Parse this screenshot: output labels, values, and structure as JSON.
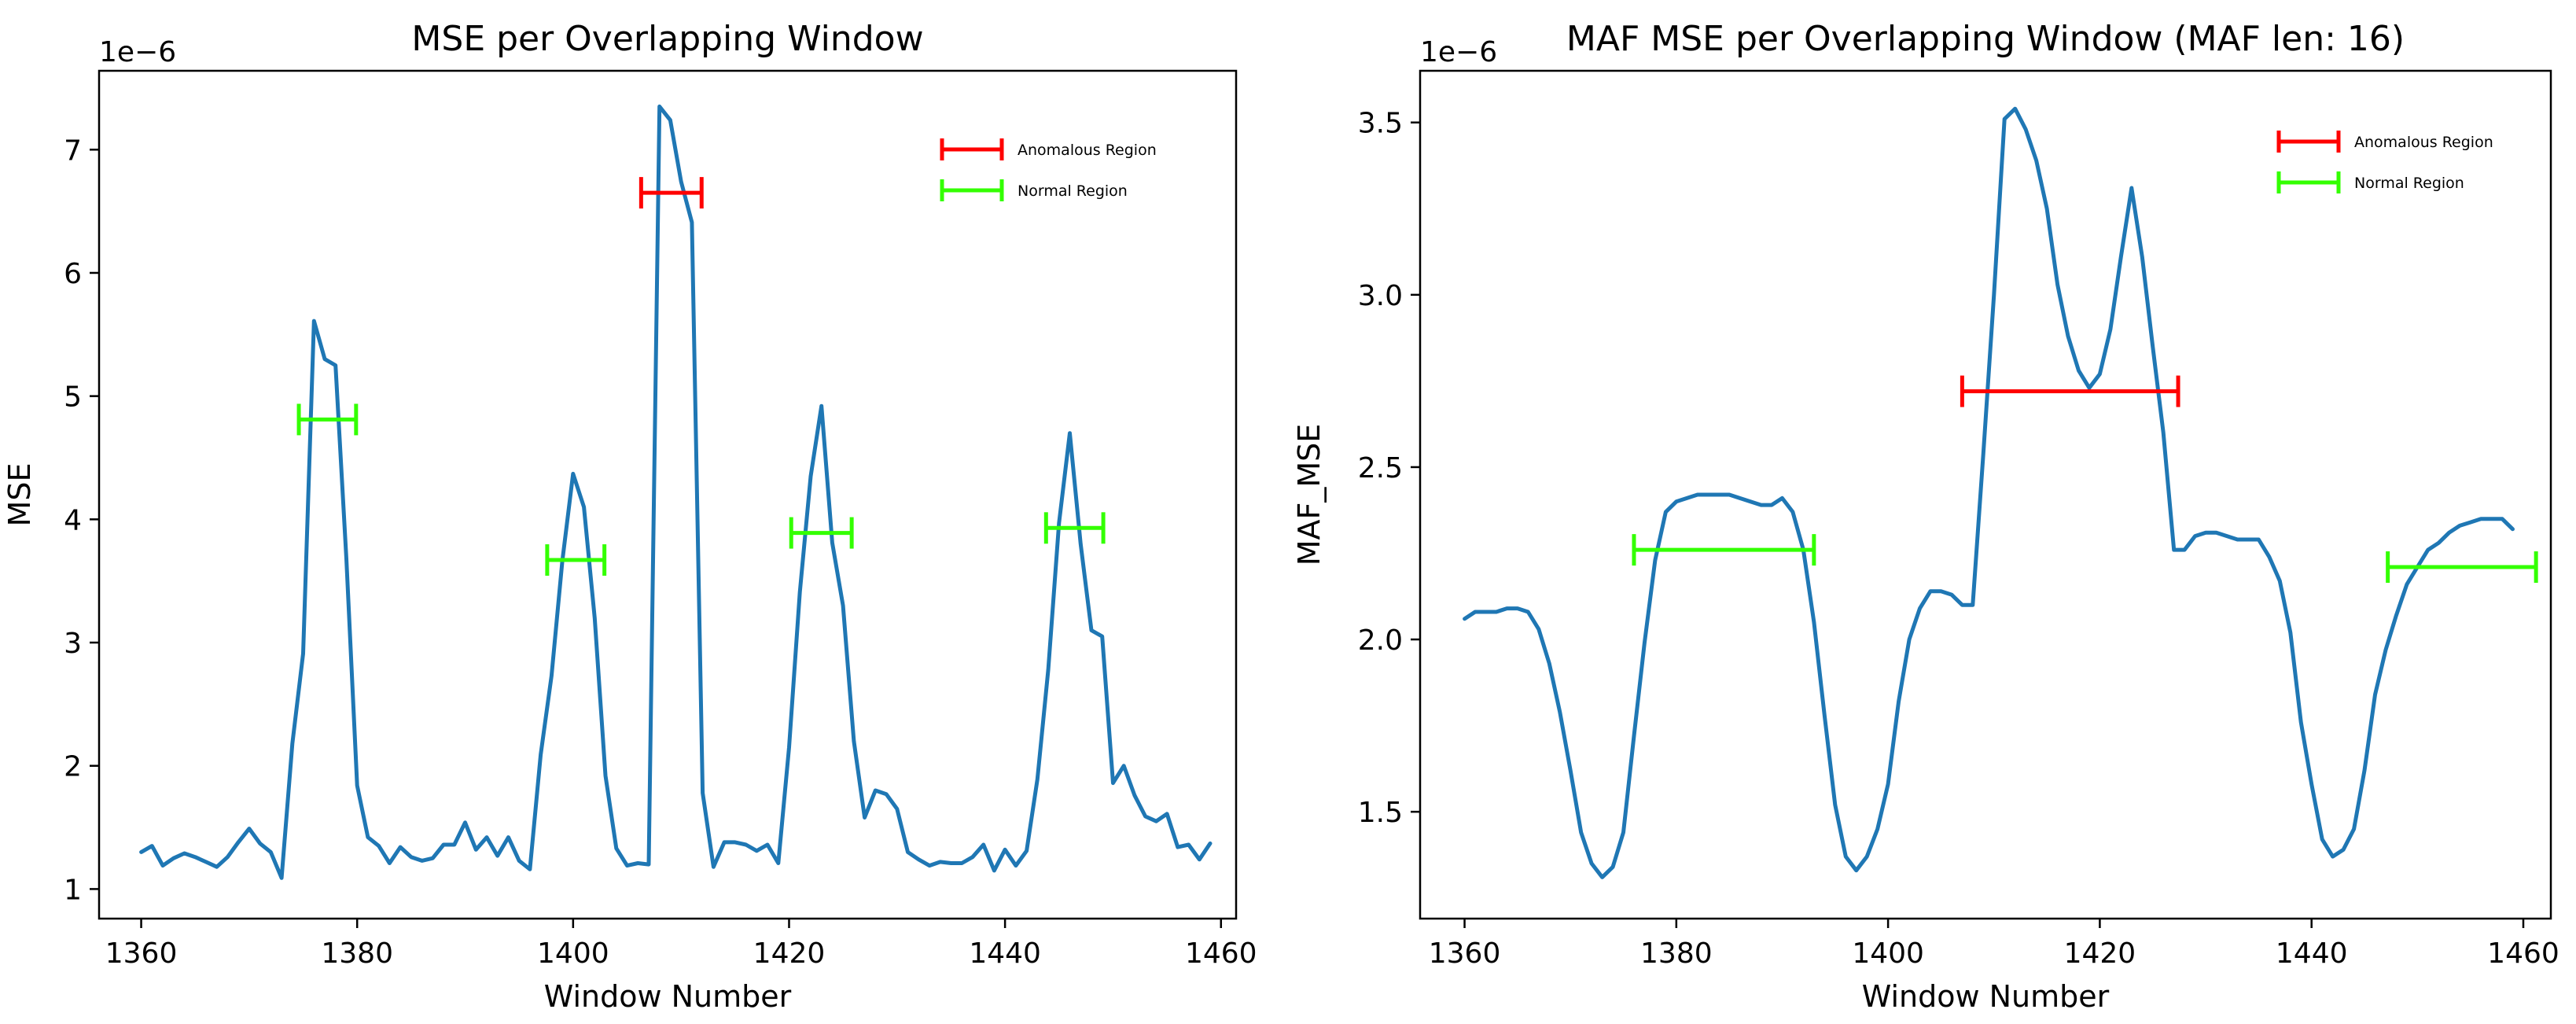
{
  "charts": [
    {
      "type": "line",
      "title": "MSE per Overlapping Window",
      "xlabel": "Window Number",
      "ylabel": "MSE",
      "offset_label": "1e−6",
      "xlim": [
        1356.1,
        1461.4
      ],
      "ylim": [
        0.76,
        7.64
      ],
      "x_ticks": [
        1360,
        1380,
        1400,
        1420,
        1440,
        1460
      ],
      "y_ticks": [
        1,
        2,
        3,
        4,
        5,
        6,
        7
      ],
      "line_color": "#1f77b4",
      "series": {
        "x": [
          1360,
          1361,
          1362,
          1363,
          1364,
          1365,
          1366,
          1367,
          1368,
          1369,
          1370,
          1371,
          1372,
          1373,
          1374,
          1375,
          1376,
          1377,
          1378,
          1379,
          1380,
          1381,
          1382,
          1383,
          1384,
          1385,
          1386,
          1387,
          1388,
          1389,
          1390,
          1391,
          1392,
          1393,
          1394,
          1395,
          1396,
          1397,
          1398,
          1399,
          1400,
          1401,
          1402,
          1403,
          1404,
          1405,
          1406,
          1407,
          1408,
          1409,
          1410,
          1411,
          1412,
          1413,
          1414,
          1415,
          1416,
          1417,
          1418,
          1419,
          1420,
          1421,
          1422,
          1423,
          1424,
          1425,
          1426,
          1427,
          1428,
          1429,
          1430,
          1431,
          1432,
          1433,
          1434,
          1435,
          1436,
          1437,
          1438,
          1439,
          1440,
          1441,
          1442,
          1443,
          1444,
          1445,
          1446,
          1447,
          1448,
          1449,
          1450,
          1451,
          1452,
          1453,
          1454,
          1455,
          1456,
          1457,
          1458,
          1459
        ],
        "y": [
          1.3,
          1.35,
          1.19,
          1.25,
          1.29,
          1.26,
          1.22,
          1.18,
          1.26,
          1.38,
          1.49,
          1.37,
          1.3,
          1.09,
          2.18,
          2.91,
          5.61,
          5.3,
          5.25,
          3.68,
          1.84,
          1.42,
          1.35,
          1.21,
          1.34,
          1.26,
          1.23,
          1.25,
          1.36,
          1.36,
          1.54,
          1.32,
          1.42,
          1.27,
          1.42,
          1.23,
          1.16,
          2.09,
          2.73,
          3.66,
          4.37,
          4.1,
          3.2,
          1.92,
          1.33,
          1.19,
          1.21,
          1.2,
          7.35,
          7.24,
          6.74,
          6.41,
          1.78,
          1.18,
          1.38,
          1.38,
          1.36,
          1.31,
          1.36,
          1.21,
          2.15,
          3.41,
          4.35,
          4.92,
          3.81,
          3.3,
          2.2,
          1.58,
          1.8,
          1.77,
          1.65,
          1.3,
          1.24,
          1.19,
          1.22,
          1.21,
          1.21,
          1.26,
          1.36,
          1.15,
          1.32,
          1.19,
          1.31,
          1.89,
          2.78,
          3.97,
          4.7,
          3.8,
          3.1,
          3.05,
          1.86,
          2.0,
          1.76,
          1.59,
          1.55,
          1.61,
          1.34,
          1.36,
          1.24,
          1.37
        ]
      },
      "regions": [
        {
          "label": "Normal Region",
          "x_start": 1374.6,
          "x_end": 1379.9,
          "y": 4.81,
          "color": "#33ff00"
        },
        {
          "label": "Normal Region",
          "x_start": 1397.6,
          "x_end": 1402.9,
          "y": 3.67,
          "color": "#33ff00"
        },
        {
          "label": "Anomalous Region",
          "x_start": 1406.3,
          "x_end": 1411.9,
          "y": 6.65,
          "color": "#ff0000"
        },
        {
          "label": "Normal Region",
          "x_start": 1420.2,
          "x_end": 1425.8,
          "y": 3.89,
          "color": "#33ff00"
        },
        {
          "label": "Normal Region",
          "x_start": 1443.8,
          "x_end": 1449.1,
          "y": 3.93,
          "color": "#33ff00"
        }
      ],
      "legend": {
        "location": "upper right",
        "entries": [
          {
            "label": "Anomalous Region",
            "color": "#ff0000"
          },
          {
            "label": "Normal Region",
            "color": "#33ff00"
          }
        ]
      }
    },
    {
      "type": "line",
      "title": "MAF MSE per Overlapping Window (MAF len: 16)",
      "xlabel": "Window Number",
      "ylabel": "MAF_MSE",
      "offset_label": "1e−6",
      "xlim": [
        1355.8,
        1462.6
      ],
      "ylim": [
        1.19,
        3.65
      ],
      "x_ticks": [
        1360,
        1380,
        1400,
        1420,
        1440,
        1460
      ],
      "y_ticks": [
        1.5,
        2.0,
        2.5,
        3.0,
        3.5
      ],
      "y_tick_labels": [
        "1.5",
        "2.0",
        "2.5",
        "3.0",
        "3.5"
      ],
      "line_color": "#1f77b4",
      "series": {
        "x": [
          1360,
          1361,
          1362,
          1363,
          1364,
          1365,
          1366,
          1367,
          1368,
          1369,
          1370,
          1371,
          1372,
          1373,
          1374,
          1375,
          1376,
          1377,
          1378,
          1379,
          1380,
          1381,
          1382,
          1383,
          1384,
          1385,
          1386,
          1387,
          1388,
          1389,
          1390,
          1391,
          1392,
          1393,
          1394,
          1395,
          1396,
          1397,
          1398,
          1399,
          1400,
          1401,
          1402,
          1403,
          1404,
          1405,
          1406,
          1407,
          1408,
          1409,
          1410,
          1411,
          1412,
          1413,
          1414,
          1415,
          1416,
          1417,
          1418,
          1419,
          1420,
          1421,
          1422,
          1423,
          1424,
          1425,
          1426,
          1427,
          1428,
          1429,
          1430,
          1431,
          1432,
          1433,
          1434,
          1435,
          1436,
          1437,
          1438,
          1439,
          1440,
          1441,
          1442,
          1443,
          1444,
          1445,
          1446,
          1447,
          1448,
          1449,
          1450,
          1451,
          1452,
          1453,
          1454,
          1455,
          1456,
          1457,
          1458,
          1459
        ],
        "y": [
          2.06,
          2.08,
          2.08,
          2.08,
          2.09,
          2.09,
          2.08,
          2.03,
          1.93,
          1.79,
          1.62,
          1.44,
          1.35,
          1.31,
          1.34,
          1.44,
          1.72,
          1.99,
          2.23,
          2.37,
          2.4,
          2.41,
          2.42,
          2.42,
          2.42,
          2.42,
          2.41,
          2.4,
          2.39,
          2.39,
          2.41,
          2.37,
          2.26,
          2.05,
          1.78,
          1.52,
          1.37,
          1.33,
          1.37,
          1.45,
          1.58,
          1.82,
          2.0,
          2.09,
          2.14,
          2.14,
          2.13,
          2.1,
          2.1,
          2.54,
          3.0,
          3.51,
          3.54,
          3.48,
          3.39,
          3.25,
          3.03,
          2.88,
          2.78,
          2.73,
          2.77,
          2.9,
          3.11,
          3.31,
          3.11,
          2.85,
          2.6,
          2.26,
          2.26,
          2.3,
          2.31,
          2.31,
          2.3,
          2.29,
          2.29,
          2.29,
          2.24,
          2.17,
          2.02,
          1.76,
          1.58,
          1.42,
          1.37,
          1.39,
          1.45,
          1.62,
          1.84,
          1.97,
          2.07,
          2.16,
          2.21,
          2.26,
          2.28,
          2.31,
          2.33,
          2.34,
          2.35,
          2.35,
          2.35,
          2.32
        ]
      },
      "regions": [
        {
          "label": "Normal Region",
          "x_start": 1376.0,
          "x_end": 1393.0,
          "y": 2.26,
          "color": "#33ff00"
        },
        {
          "label": "Anomalous Region",
          "x_start": 1407.0,
          "x_end": 1427.4,
          "y": 2.72,
          "color": "#ff0000"
        },
        {
          "label": "Normal Region",
          "x_start": 1447.2,
          "x_end": 1461.2,
          "y": 2.21,
          "color": "#33ff00"
        }
      ],
      "legend": {
        "location": "upper right",
        "entries": [
          {
            "label": "Anomalous Region",
            "color": "#ff0000"
          },
          {
            "label": "Normal Region",
            "color": "#33ff00"
          }
        ]
      }
    }
  ]
}
